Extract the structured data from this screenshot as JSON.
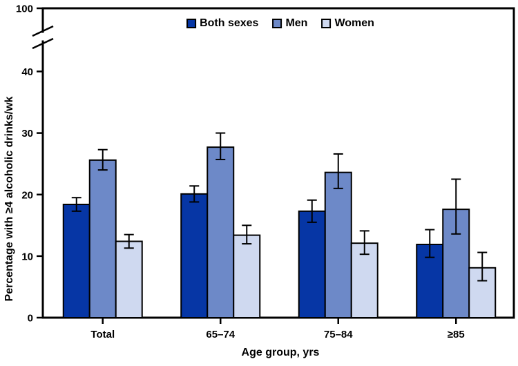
{
  "chart_data": {
    "type": "bar",
    "title": "",
    "categories": [
      "Total",
      "65–74",
      "75–84",
      "≥85"
    ],
    "series": [
      {
        "name": "Both sexes",
        "color": "#0636a5",
        "values": [
          18.4,
          20.1,
          17.3,
          11.9
        ],
        "ci_low": [
          17.3,
          18.8,
          15.5,
          9.8
        ],
        "ci_high": [
          19.5,
          21.4,
          19.1,
          14.3
        ]
      },
      {
        "name": "Men",
        "color": "#6d89c8",
        "values": [
          25.6,
          27.7,
          23.6,
          17.6
        ],
        "ci_low": [
          24.0,
          25.7,
          21.0,
          13.6
        ],
        "ci_high": [
          27.3,
          30.0,
          26.6,
          22.5
        ]
      },
      {
        "name": "Women",
        "color": "#cfd9f0",
        "values": [
          12.4,
          13.4,
          12.1,
          8.1
        ],
        "ci_low": [
          11.3,
          12.0,
          10.3,
          6.0
        ],
        "ci_high": [
          13.5,
          15.0,
          14.1,
          10.6
        ]
      }
    ],
    "xlabel": "Age group, yrs",
    "ylabel": "Percentage with ≥4 alcoholic drinks/wk",
    "ylim": [
      0,
      40
    ],
    "yticks": [
      0,
      10,
      20,
      30,
      40
    ],
    "axis_break": {
      "upper_tick": "100"
    },
    "error_bars": true,
    "legend_position": "top-center",
    "grid": false
  }
}
